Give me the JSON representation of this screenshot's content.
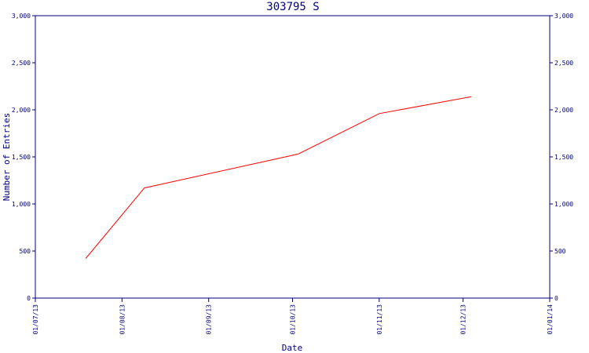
{
  "chart_data": {
    "type": "line",
    "title": "303795 S",
    "xlabel": "Date",
    "ylabel": "Number of Entries",
    "x_ticks": [
      "01/07/13",
      "01/08/13",
      "01/09/13",
      "01/10/13",
      "01/11/13",
      "01/12/13",
      "01/01/14"
    ],
    "y_ticks": [
      "0",
      "500",
      "1,000",
      "1,500",
      "2,000",
      "2,500",
      "3,000"
    ],
    "ylim": [
      0,
      3000
    ],
    "xlim": [
      "2013-07-01",
      "2014-01-01"
    ],
    "grid": false,
    "legend": "none",
    "colors": {
      "axis": "#000080",
      "line": "#ff0000",
      "background": "#ffffff"
    },
    "series": [
      {
        "x": [
          "2013-07-19",
          "2013-08-09",
          "2013-10-03",
          "2013-11-01",
          "2013-12-04"
        ],
        "y": [
          420,
          1170,
          1530,
          1960,
          2140
        ]
      }
    ]
  }
}
